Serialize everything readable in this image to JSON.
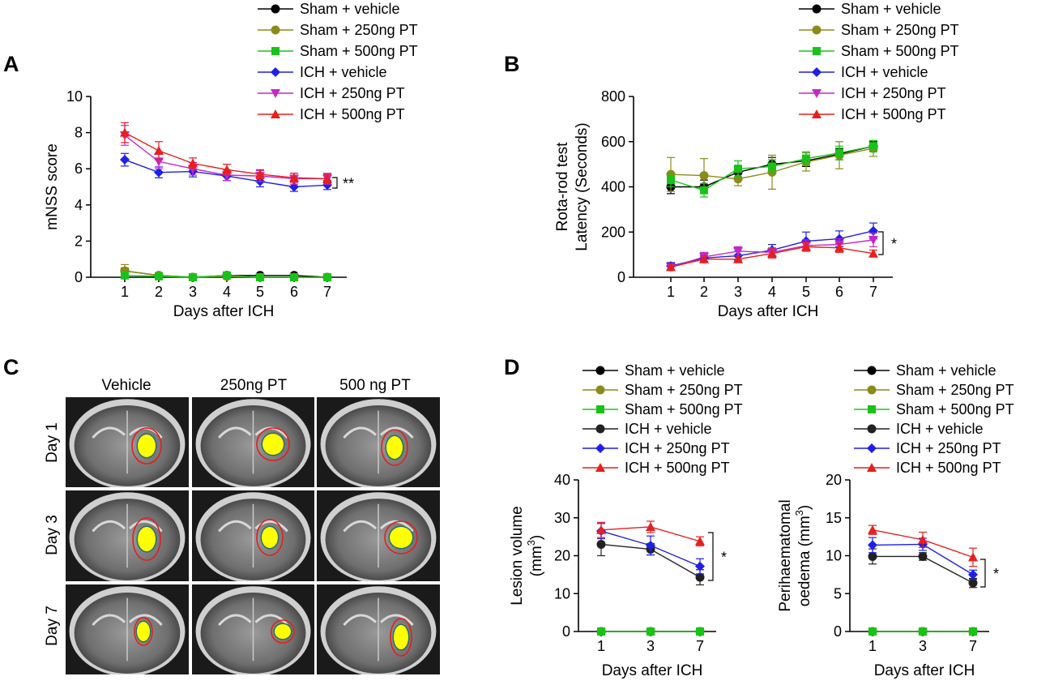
{
  "panel_letters": [
    "A",
    "B",
    "C",
    "D"
  ],
  "series_colors": {
    "sham_vehicle": "#000000",
    "sham_250": "#8B8B1A",
    "sham_500": "#19C219",
    "ich_vehicle": "#1F1FE6",
    "ich_250": "#C627C6",
    "ich_500": "#E61F1F"
  },
  "chart_data": [
    {
      "id": "A",
      "type": "line",
      "ylabel": "mNSS score",
      "xlabel": "Days after ICH",
      "x": [
        1,
        2,
        3,
        4,
        5,
        6,
        7
      ],
      "xlim": [
        0.5,
        7.5
      ],
      "ylim": [
        0,
        10
      ],
      "yticks": [
        0,
        2,
        4,
        6,
        8,
        10
      ],
      "legend": "top",
      "significance": "**",
      "series": [
        {
          "name": "Sham + vehicle",
          "marker": "circle",
          "color": "#000000",
          "values": [
            0.35,
            0.1,
            0.0,
            0.1,
            0.1,
            0.1,
            0.0
          ],
          "err": [
            0.15,
            0.1,
            0.05,
            0.1,
            0.05,
            0.05,
            0.05
          ]
        },
        {
          "name": "Sham + 250ng PT",
          "marker": "circle",
          "color": "#8B8B1A",
          "values": [
            0.35,
            0.1,
            0.0,
            0.05,
            0.0,
            0.0,
            0.0
          ],
          "err": [
            0.35,
            0.1,
            0.05,
            0.05,
            0.05,
            0.05,
            0.05
          ]
        },
        {
          "name": "Sham + 500ng PT",
          "marker": "square",
          "color": "#19C219",
          "values": [
            0.1,
            0.05,
            0.0,
            0.1,
            0.0,
            0.0,
            0.0
          ],
          "err": [
            0.1,
            0.05,
            0.05,
            0.1,
            0.05,
            0.05,
            0.05
          ]
        },
        {
          "name": "ICH + vehicle",
          "marker": "diamond",
          "color": "#1F1FE6",
          "values": [
            6.5,
            5.8,
            5.85,
            5.6,
            5.3,
            5.0,
            5.1
          ],
          "err": [
            0.35,
            0.3,
            0.3,
            0.25,
            0.3,
            0.25,
            0.25
          ]
        },
        {
          "name": "ICH + 250ng PT",
          "marker": "triangle-down",
          "color": "#C627C6",
          "values": [
            7.85,
            6.4,
            6.0,
            5.65,
            5.6,
            5.45,
            5.45
          ],
          "err": [
            0.55,
            0.4,
            0.35,
            0.3,
            0.3,
            0.3,
            0.3
          ]
        },
        {
          "name": "ICH + 500ng PT",
          "marker": "triangle-up",
          "color": "#E61F1F",
          "values": [
            8.0,
            7.0,
            6.3,
            5.95,
            5.7,
            5.5,
            5.45
          ],
          "err": [
            0.55,
            0.5,
            0.3,
            0.3,
            0.25,
            0.25,
            0.25
          ]
        }
      ]
    },
    {
      "id": "B",
      "type": "line",
      "ylabel": [
        "Rota-rod test",
        "Latency (Seconds)"
      ],
      "xlabel": "Days  after ICH",
      "x": [
        1,
        2,
        3,
        4,
        5,
        6,
        7
      ],
      "xlim": [
        0.5,
        7.5
      ],
      "ylim": [
        0,
        800
      ],
      "yticks": [
        0,
        200,
        400,
        600,
        800
      ],
      "legend": "top",
      "significance": "*",
      "series": [
        {
          "name": "Sham + vehicle",
          "marker": "circle",
          "color": "#000000",
          "values": [
            400,
            400,
            465,
            500,
            515,
            545,
            580
          ],
          "err": [
            30,
            30,
            30,
            30,
            25,
            25,
            20
          ]
        },
        {
          "name": "Sham + 250ng PT",
          "marker": "circle",
          "color": "#8B8B1A",
          "values": [
            455,
            450,
            435,
            465,
            510,
            540,
            570
          ],
          "err": [
            75,
            75,
            30,
            75,
            40,
            60,
            35
          ]
        },
        {
          "name": "Sham + 500ng PT",
          "marker": "square",
          "color": "#19C219",
          "values": [
            430,
            385,
            480,
            490,
            525,
            550,
            580
          ],
          "err": [
            30,
            30,
            35,
            30,
            30,
            30,
            25
          ]
        },
        {
          "name": "ICH + vehicle",
          "marker": "diamond",
          "color": "#1F1FE6",
          "values": [
            50,
            85,
            95,
            120,
            160,
            170,
            205
          ],
          "err": [
            15,
            20,
            20,
            25,
            40,
            35,
            35
          ]
        },
        {
          "name": "ICH + 250ng PT",
          "marker": "triangle-down",
          "color": "#C627C6",
          "values": [
            45,
            90,
            115,
            110,
            140,
            145,
            165
          ],
          "err": [
            15,
            20,
            20,
            20,
            25,
            25,
            30
          ]
        },
        {
          "name": "ICH + 500ng PT",
          "marker": "triangle-up",
          "color": "#E61F1F",
          "values": [
            45,
            80,
            80,
            105,
            135,
            130,
            105
          ],
          "err": [
            15,
            15,
            15,
            20,
            20,
            20,
            15
          ]
        }
      ]
    },
    {
      "id": "D-left",
      "type": "line",
      "ylabel": "Lesion volume",
      "ylabel_unit": "(mm",
      "ylabel_sup": "3",
      "ylabel_close": ")",
      "xlabel": "Days after ICH",
      "x": [
        1,
        3,
        7
      ],
      "ylim": [
        0,
        40
      ],
      "yticks": [
        0,
        10,
        20,
        30,
        40
      ],
      "legend": "top",
      "significance": "*",
      "series": [
        {
          "name": "Sham + vehicle",
          "marker": "circle",
          "color": "#000000",
          "values": [
            0,
            0,
            0
          ],
          "err": [
            0,
            0,
            0
          ]
        },
        {
          "name": "Sham + 250ng PT",
          "marker": "circle",
          "color": "#8B8B1A",
          "values": [
            0,
            0,
            0
          ],
          "err": [
            0,
            0,
            0
          ]
        },
        {
          "name": "Sham + 500ng PT",
          "marker": "square",
          "color": "#19C219",
          "values": [
            0,
            0,
            0
          ],
          "err": [
            0,
            0,
            0
          ]
        },
        {
          "name": "ICH + vehicle",
          "marker": "circle",
          "color": "#222222",
          "values": [
            23,
            21.7,
            14.3
          ],
          "err": [
            3.0,
            1.5,
            2.0
          ]
        },
        {
          "name": "ICH + 250ng PT",
          "marker": "diamond",
          "color": "#1F1FE6",
          "values": [
            26.5,
            22.7,
            17.2
          ],
          "err": [
            2.0,
            2.5,
            2.0
          ]
        },
        {
          "name": "ICH + 500ng PT",
          "marker": "triangle-up",
          "color": "#E61F1F",
          "values": [
            26.8,
            27.6,
            23.8
          ],
          "err": [
            2.0,
            1.5,
            1.2
          ]
        }
      ]
    },
    {
      "id": "D-right",
      "type": "line",
      "ylabel": "Perihaematomal",
      "ylabel_unit": "oedema (mm",
      "ylabel_sup": "3",
      "ylabel_close": ")",
      "xlabel": "Days after ICH",
      "x": [
        1,
        3,
        7
      ],
      "ylim": [
        0,
        20
      ],
      "yticks": [
        0,
        5,
        10,
        15,
        20
      ],
      "legend": "top",
      "significance": "*",
      "series": [
        {
          "name": "Sham + vehicle",
          "marker": "circle",
          "color": "#000000",
          "values": [
            0,
            0,
            0
          ],
          "err": [
            0,
            0,
            0
          ]
        },
        {
          "name": "Sham + 250ng PT",
          "marker": "circle",
          "color": "#8B8B1A",
          "values": [
            0,
            0,
            0
          ],
          "err": [
            0,
            0,
            0
          ]
        },
        {
          "name": "Sham + 500ng PT",
          "marker": "square",
          "color": "#19C219",
          "values": [
            0,
            0,
            0
          ],
          "err": [
            0,
            0,
            0
          ]
        },
        {
          "name": "ICH + vehicle",
          "marker": "circle",
          "color": "#222222",
          "values": [
            9.9,
            9.9,
            6.4
          ],
          "err": [
            1.0,
            0.5,
            0.6
          ]
        },
        {
          "name": "ICH + 250ng PT",
          "marker": "diamond",
          "color": "#1F1FE6",
          "values": [
            11.4,
            11.5,
            7.5
          ],
          "err": [
            1.0,
            0.8,
            0.6
          ]
        },
        {
          "name": "ICH + 500ng PT",
          "marker": "triangle-up",
          "color": "#E61F1F",
          "values": [
            13.4,
            12.1,
            9.8
          ],
          "err": [
            0.6,
            1.0,
            1.2
          ]
        }
      ]
    }
  ],
  "panel_c": {
    "columns": [
      "Vehicle",
      "250ng PT",
      "500 ng PT"
    ],
    "rows": [
      "Day 1",
      "Day 3",
      "Day 7"
    ]
  }
}
